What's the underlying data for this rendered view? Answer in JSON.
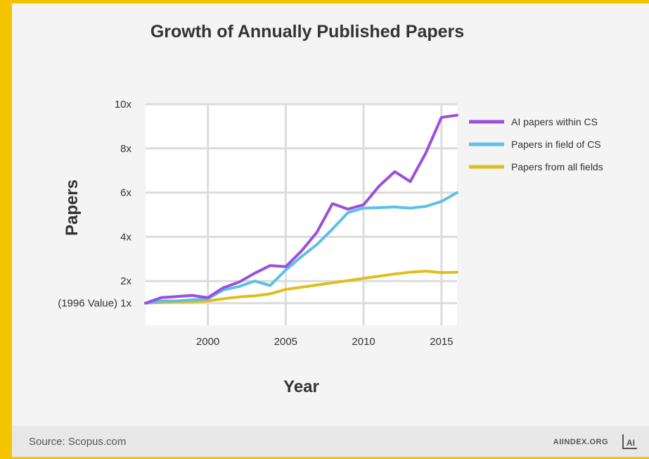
{
  "source_label": "Source: Scopus.com",
  "brand": "AIINDEX.ORG",
  "brand_logo_text": "AI",
  "chart_data": {
    "type": "line",
    "title": "Growth of Annually Published Papers",
    "xlabel": "Year",
    "ylabel": "Papers",
    "xlim": [
      1996,
      2016
    ],
    "ylim": [
      0,
      10
    ],
    "x_ticks": [
      2000,
      2005,
      2010,
      2015
    ],
    "y_ticks": [
      {
        "value": 1,
        "label": "(1996 Value) 1x"
      },
      {
        "value": 2,
        "label": "2x"
      },
      {
        "value": 4,
        "label": "4x"
      },
      {
        "value": 6,
        "label": "6x"
      },
      {
        "value": 8,
        "label": "8x"
      },
      {
        "value": 10,
        "label": "10x"
      }
    ],
    "grid": true,
    "legend_position": "right",
    "x": [
      1996,
      1997,
      1998,
      1999,
      2000,
      2001,
      2002,
      2003,
      2004,
      2005,
      2006,
      2007,
      2008,
      2009,
      2010,
      2011,
      2012,
      2013,
      2014,
      2015,
      2016
    ],
    "series": [
      {
        "name": "AI papers within CS",
        "color": "#9b4fdb",
        "values": [
          1.0,
          1.25,
          1.3,
          1.35,
          1.25,
          1.7,
          1.95,
          2.35,
          2.7,
          2.65,
          3.35,
          4.2,
          5.5,
          5.25,
          5.45,
          6.3,
          6.95,
          6.5,
          7.8,
          9.4,
          9.5
        ]
      },
      {
        "name": "Papers in field of CS",
        "color": "#5bc0e8",
        "values": [
          1.0,
          1.1,
          1.1,
          1.15,
          1.2,
          1.6,
          1.75,
          2.0,
          1.8,
          2.5,
          3.1,
          3.65,
          4.35,
          5.1,
          5.3,
          5.32,
          5.35,
          5.3,
          5.38,
          5.6,
          6.0
        ]
      },
      {
        "name": "Papers from all fields",
        "color": "#e0be1c",
        "values": [
          1.0,
          1.03,
          1.06,
          1.06,
          1.1,
          1.2,
          1.28,
          1.33,
          1.42,
          1.62,
          1.72,
          1.82,
          1.92,
          2.02,
          2.12,
          2.22,
          2.32,
          2.4,
          2.45,
          2.38,
          2.4
        ]
      }
    ]
  }
}
